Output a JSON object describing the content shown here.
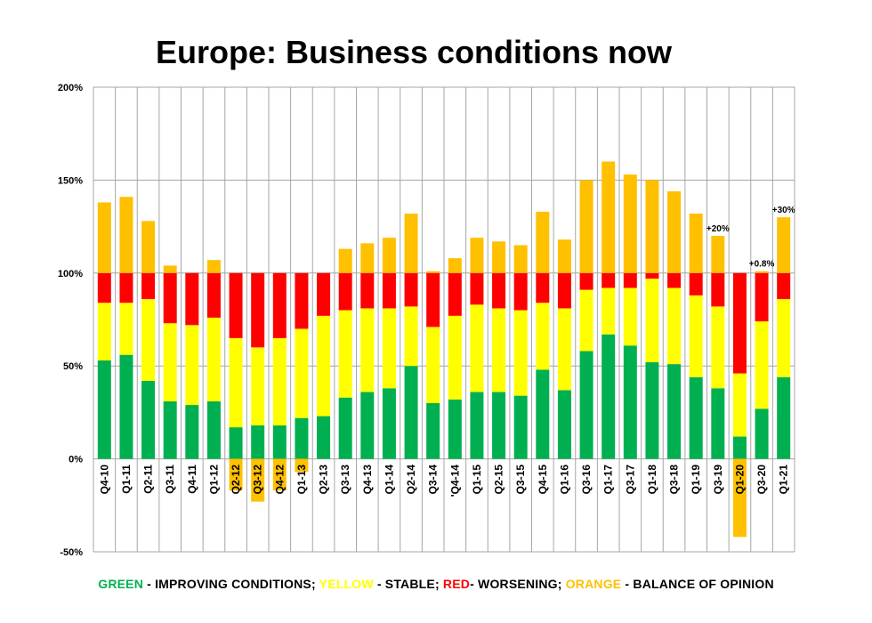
{
  "chart_data": {
    "type": "bar",
    "stacked": true,
    "title": "Europe: Business conditions now",
    "categories": [
      "Q4-10",
      "Q1-11",
      "Q2-11",
      "Q3-11",
      "Q4-11",
      "Q1-12",
      "Q2-12",
      "Q3-12",
      "Q4-12",
      "Q1-13",
      "Q2-13",
      "Q3-13",
      "Q4-13",
      "Q1-14",
      "Q2-14",
      "Q3-14",
      "'Q4-14",
      "Q1-15",
      "Q2-15",
      "Q3-15",
      "Q4-15",
      "Q1-16",
      "Q3-16",
      "Q1-17",
      "Q3-17",
      "Q1-18",
      "Q3-18",
      "Q1-19",
      "Q3-19",
      "Q1-20",
      "Q3-20",
      "Q1-21"
    ],
    "series": [
      {
        "name": "GREEN",
        "color": "#00b050",
        "values": [
          53,
          56,
          42,
          31,
          29,
          31,
          17,
          18,
          18,
          22,
          23,
          33,
          36,
          38,
          50,
          30,
          32,
          36,
          36,
          34,
          48,
          37,
          58,
          67,
          61,
          52,
          51,
          44,
          38,
          12,
          27,
          44
        ]
      },
      {
        "name": "YELLOW",
        "color": "#ffff00",
        "values": [
          31,
          28,
          44,
          42,
          43,
          45,
          48,
          42,
          47,
          48,
          54,
          47,
          45,
          43,
          32,
          41,
          45,
          47,
          45,
          46,
          36,
          44,
          33,
          25,
          31,
          45,
          41,
          44,
          44,
          34,
          47,
          42
        ]
      },
      {
        "name": "RED",
        "color": "#ff0000",
        "values": [
          16,
          16,
          14,
          27,
          28,
          24,
          35,
          40,
          35,
          30,
          23,
          20,
          19,
          19,
          18,
          29,
          23,
          17,
          19,
          20,
          16,
          19,
          9,
          8,
          8,
          3,
          8,
          12,
          18,
          54,
          26,
          14
        ]
      },
      {
        "name": "ORANGE",
        "color": "#ffc000",
        "values": [
          38,
          41,
          28,
          4,
          0,
          7,
          -17,
          -23,
          -17,
          -7,
          0,
          13,
          16,
          19,
          32,
          1,
          8,
          19,
          17,
          15,
          33,
          18,
          50,
          60,
          53,
          50,
          44,
          32,
          20,
          -42,
          1,
          30
        ]
      }
    ],
    "annotations": [
      {
        "category": "Q3-19",
        "text": "+20%"
      },
      {
        "category": "Q3-20",
        "text": "+0.8%"
      },
      {
        "category": "Q1-21",
        "text": "+30%"
      }
    ],
    "yticks": [
      "200%",
      "150%",
      "100%",
      "50%",
      "0%",
      "-50%"
    ],
    "ylim": [
      -50,
      200
    ],
    "grid": true
  },
  "legend": {
    "green_word": "GREEN",
    "green_text": " - IMPROVING CONDITIONS; ",
    "yellow_word": "YELLOW",
    "yellow_text": " - STABLE; ",
    "red_word": "RED",
    "red_text": "- WORSENING; ",
    "orange_word": "ORANGE",
    "orange_text": " - BALANCE OF OPINION"
  }
}
